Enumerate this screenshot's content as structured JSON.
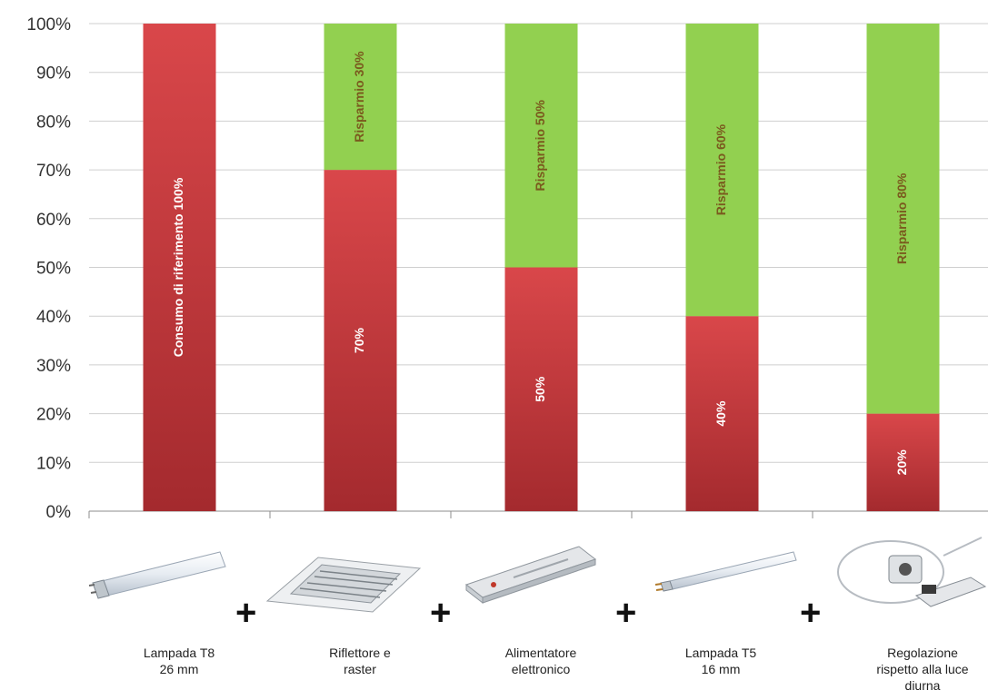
{
  "chart_data": {
    "type": "bar",
    "stacked": true,
    "categories": [
      "Lampada T8\n26 mm",
      "Riflettore e\nraster",
      "Alimentatore\nelettronico",
      "Lampada T5\n16 mm",
      "Regolazione\nrispetto alla luce\ndiurna"
    ],
    "series": [
      {
        "key": "consumo",
        "values": [
          100,
          70,
          50,
          40,
          20
        ],
        "color": "#c8383a",
        "labels": [
          "Consumo di riferimento 100%",
          "70%",
          "50%",
          "40%",
          "20%"
        ]
      },
      {
        "key": "risparmio",
        "values": [
          0,
          30,
          50,
          60,
          80
        ],
        "color": "#92d050",
        "labels": [
          "",
          "Risparmio 30%",
          "Risparmio 50%",
          "Risparmio 60%",
          "Risparmio 80%"
        ]
      }
    ],
    "ylim": [
      0,
      100
    ],
    "yticks": [
      "0%",
      "10%",
      "20%",
      "30%",
      "40%",
      "50%",
      "60%",
      "70%",
      "80%",
      "90%",
      "100%"
    ],
    "grid": true,
    "legend": "none"
  },
  "illustrations": [
    "fluorescent-tube-t8-icon",
    "reflector-raster-luminaire-icon",
    "electronic-ballast-icon",
    "fluorescent-tube-t5-icon",
    "daylight-sensor-control-icon"
  ],
  "connector_symbol": "+"
}
